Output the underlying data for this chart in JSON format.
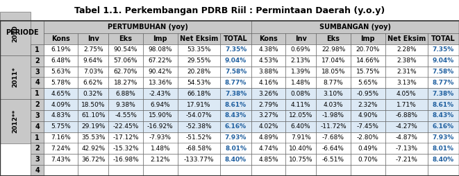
{
  "title": "Tabel 1.1. Perkembangan PDRB Riil : Permintaan Daerah (y.o.y)",
  "row_header": "PERIODE",
  "group_header_1": "PERTUMBUHAN (yoy)",
  "group_header_2": "SUMBANGAN (yoy)",
  "sub_headers": [
    "Kons",
    "Inv",
    "Eks",
    "Imp",
    "Net Eksim",
    "TOTAL",
    "Kons",
    "Inv",
    "Eks",
    "Imp",
    "Net Eksim",
    "TOTAL"
  ],
  "rows": [
    [
      "2010",
      "1",
      "6.19%",
      "2.75%",
      "90.54%",
      "98.08%",
      "53.35%",
      "7.35%",
      "4.38%",
      "0.69%",
      "22.98%",
      "20.70%",
      "2.28%",
      "7.35%"
    ],
    [
      "2010",
      "2",
      "6.48%",
      "9.64%",
      "57.06%",
      "67.22%",
      "29.55%",
      "9.04%",
      "4.53%",
      "2.13%",
      "17.04%",
      "14.66%",
      "2.38%",
      "9.04%"
    ],
    [
      "2010",
      "3",
      "5.63%",
      "7.03%",
      "62.70%",
      "90.42%",
      "20.28%",
      "7.58%",
      "3.88%",
      "1.39%",
      "18.05%",
      "15.75%",
      "2.31%",
      "7.58%"
    ],
    [
      "2010",
      "4",
      "5.78%",
      "6.62%",
      "18.27%",
      "13.36%",
      "54.53%",
      "8.77%",
      "4.16%",
      "1.48%",
      "8.77%",
      "5.65%",
      "3.13%",
      "8.77%"
    ],
    [
      "2011*",
      "1",
      "4.65%",
      "0.32%",
      "6.88%",
      "-2.43%",
      "66.18%",
      "7.38%",
      "3.26%",
      "0.08%",
      "3.10%",
      "-0.95%",
      "4.05%",
      "7.38%"
    ],
    [
      "2011*",
      "2",
      "4.09%",
      "18.50%",
      "9.38%",
      "6.94%",
      "17.91%",
      "8.61%",
      "2.79%",
      "4.11%",
      "4.03%",
      "2.32%",
      "1.71%",
      "8.61%"
    ],
    [
      "2011*",
      "3",
      "4.83%",
      "61.10%",
      "-4.55%",
      "15.90%",
      "-54.07%",
      "8.43%",
      "3.27%",
      "12.05%",
      "-1.98%",
      "4.90%",
      "-6.88%",
      "8.43%"
    ],
    [
      "2011*",
      "4",
      "5.75%",
      "29.19%",
      "-22.45%",
      "-16.92%",
      "-52.38%",
      "6.16%",
      "4.02%",
      "6.40%",
      "-11.72%",
      "-7.45%",
      "-4.27%",
      "6.16%"
    ],
    [
      "2012**",
      "1",
      "7.16%",
      "35.53%",
      "-17.12%",
      "-7.93%",
      "-51.52%",
      "7.93%",
      "4.89%",
      "7.91%",
      "-7.68%",
      "-2.80%",
      "-4.87%",
      "7.93%"
    ],
    [
      "2012**",
      "2",
      "7.24%",
      "42.92%",
      "-15.32%",
      "1.48%",
      "-68.58%",
      "8.01%",
      "4.74%",
      "10.40%",
      "-6.64%",
      "0.49%",
      "-7.13%",
      "8.01%"
    ],
    [
      "2012**",
      "3",
      "7.43%",
      "36.72%",
      "-16.98%",
      "2.12%",
      "-133.77%",
      "8.40%",
      "4.85%",
      "10.75%",
      "-6.51%",
      "0.70%",
      "-7.21%",
      "8.40%"
    ],
    [
      "2012**",
      "4",
      "",
      "",
      "",
      "",
      "",
      "",
      "",
      "",
      "",
      "",
      "",
      ""
    ]
  ],
  "year_bg": {
    "2010": "#FFFFFF",
    "2011*": "#DCE9F5",
    "2012**": "#FFFFFF"
  },
  "total_indices": [
    7,
    13
  ],
  "total_color": "#2060A0",
  "header_bg": "#C8C8C8",
  "border_dark": "#555555",
  "border_light": "#999999",
  "title_fontsize": 9.0,
  "header_fontsize": 7.0,
  "cell_fontsize": 6.5,
  "year_fontsize": 6.5
}
